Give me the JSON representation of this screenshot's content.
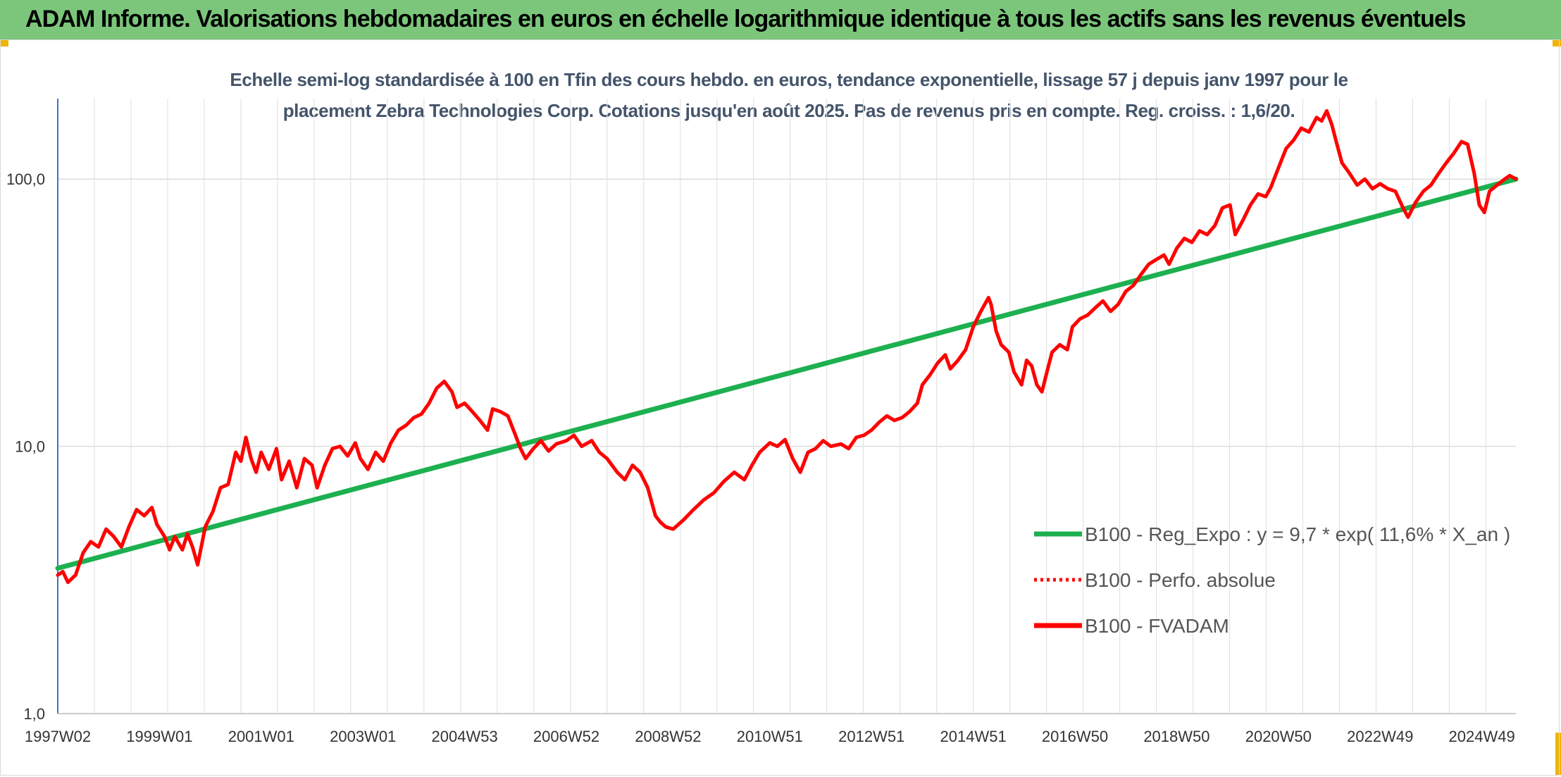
{
  "header": {
    "title": "ADAM Informe. Valorisations hebdomadaires en euros en échelle logarithmique identique à tous les actifs sans les revenus éventuels",
    "background": "#7bc67b"
  },
  "chart_data": {
    "type": "line",
    "title_line1": "Echelle semi-log standardisée à 100 en Tfin des cours hebdo. en euros, tendance exponentielle, lissage 57 j depuis janv 1997 pour le",
    "title_line2": "placement Zebra Technologies Corp. Cotations jusqu'en août 2025. Pas de revenus pris en compte. Reg. croiss. : 1,6/20.",
    "y_scale": "log",
    "ylim": [
      1,
      200
    ],
    "y_ticks": [
      {
        "value": 1,
        "label": "1,0"
      },
      {
        "value": 10,
        "label": "10,0"
      },
      {
        "value": 100,
        "label": "100,0"
      }
    ],
    "xlim": [
      1997.0,
      2025.67
    ],
    "x_ticks": [
      {
        "label": "1997W02",
        "t": 1997.0
      },
      {
        "label": "1999W01",
        "t": 1999.0
      },
      {
        "label": "2001W01",
        "t": 2001.0
      },
      {
        "label": "2003W01",
        "t": 2003.0
      },
      {
        "label": "2004W53",
        "t": 2005.0
      },
      {
        "label": "2006W52",
        "t": 2007.0
      },
      {
        "label": "2008W52",
        "t": 2009.0
      },
      {
        "label": "2010W51",
        "t": 2011.0
      },
      {
        "label": "2012W51",
        "t": 2013.0
      },
      {
        "label": "2014W51",
        "t": 2015.0
      },
      {
        "label": "2016W50",
        "t": 2017.0
      },
      {
        "label": "2018W50",
        "t": 2019.0
      },
      {
        "label": "2020W50",
        "t": 2021.0
      },
      {
        "label": "2022W49",
        "t": 2023.0
      },
      {
        "label": "2024W49",
        "t": 2025.0
      }
    ],
    "grid": true,
    "legend_position": "bottom-right",
    "series": [
      {
        "name": "B100 - Reg_Expo : y = 9,7 * exp( 11,6% *  X_an )",
        "color": "#1db050",
        "style": "solid",
        "points": [
          [
            1997.0,
            3.5
          ],
          [
            2025.67,
            100.0
          ]
        ]
      },
      {
        "name": "B100 - Perfo. absolue",
        "color": "#ff0000",
        "style": "dotted",
        "points": []
      },
      {
        "name": "B100 - FVADAM",
        "color": "#ff0000",
        "style": "solid",
        "points": [
          [
            1997.0,
            3.3
          ],
          [
            1997.1,
            3.4
          ],
          [
            1997.2,
            3.1
          ],
          [
            1997.35,
            3.3
          ],
          [
            1997.5,
            4.0
          ],
          [
            1997.65,
            4.4
          ],
          [
            1997.8,
            4.2
          ],
          [
            1997.95,
            4.9
          ],
          [
            1998.1,
            4.6
          ],
          [
            1998.25,
            4.2
          ],
          [
            1998.4,
            5.0
          ],
          [
            1998.55,
            5.8
          ],
          [
            1998.7,
            5.5
          ],
          [
            1998.85,
            5.9
          ],
          [
            1998.95,
            5.1
          ],
          [
            1999.1,
            4.6
          ],
          [
            1999.2,
            4.1
          ],
          [
            1999.3,
            4.6
          ],
          [
            1999.45,
            4.1
          ],
          [
            1999.55,
            4.7
          ],
          [
            1999.65,
            4.2
          ],
          [
            1999.75,
            3.6
          ],
          [
            1999.9,
            5.0
          ],
          [
            2000.05,
            5.7
          ],
          [
            2000.2,
            7.0
          ],
          [
            2000.35,
            7.2
          ],
          [
            2000.5,
            9.5
          ],
          [
            2000.6,
            8.8
          ],
          [
            2000.7,
            10.8
          ],
          [
            2000.8,
            9.0
          ],
          [
            2000.9,
            8.0
          ],
          [
            2001.0,
            9.5
          ],
          [
            2001.15,
            8.2
          ],
          [
            2001.3,
            9.8
          ],
          [
            2001.4,
            7.5
          ],
          [
            2001.55,
            8.8
          ],
          [
            2001.7,
            7.0
          ],
          [
            2001.85,
            9.0
          ],
          [
            2002.0,
            8.5
          ],
          [
            2002.1,
            7.0
          ],
          [
            2002.25,
            8.5
          ],
          [
            2002.4,
            9.8
          ],
          [
            2002.55,
            10.0
          ],
          [
            2002.7,
            9.2
          ],
          [
            2002.85,
            10.3
          ],
          [
            2002.95,
            9.0
          ],
          [
            2003.1,
            8.2
          ],
          [
            2003.25,
            9.5
          ],
          [
            2003.4,
            8.8
          ],
          [
            2003.55,
            10.3
          ],
          [
            2003.7,
            11.5
          ],
          [
            2003.85,
            12.0
          ],
          [
            2004.0,
            12.8
          ],
          [
            2004.15,
            13.2
          ],
          [
            2004.3,
            14.5
          ],
          [
            2004.45,
            16.5
          ],
          [
            2004.6,
            17.5
          ],
          [
            2004.75,
            16.0
          ],
          [
            2004.85,
            14.0
          ],
          [
            2005.0,
            14.5
          ],
          [
            2005.15,
            13.5
          ],
          [
            2005.3,
            12.5
          ],
          [
            2005.45,
            11.5
          ],
          [
            2005.55,
            13.8
          ],
          [
            2005.7,
            13.5
          ],
          [
            2005.85,
            13.0
          ],
          [
            2006.0,
            11.0
          ],
          [
            2006.1,
            9.8
          ],
          [
            2006.2,
            9.0
          ],
          [
            2006.35,
            9.8
          ],
          [
            2006.5,
            10.5
          ],
          [
            2006.65,
            9.6
          ],
          [
            2006.8,
            10.2
          ],
          [
            2007.0,
            10.5
          ],
          [
            2007.15,
            11.0
          ],
          [
            2007.3,
            10.0
          ],
          [
            2007.5,
            10.5
          ],
          [
            2007.65,
            9.5
          ],
          [
            2007.8,
            9.0
          ],
          [
            2008.0,
            8.0
          ],
          [
            2008.15,
            7.5
          ],
          [
            2008.3,
            8.5
          ],
          [
            2008.45,
            8.0
          ],
          [
            2008.6,
            7.0
          ],
          [
            2008.75,
            5.5
          ],
          [
            2008.85,
            5.2
          ],
          [
            2008.95,
            5.0
          ],
          [
            2009.1,
            4.9
          ],
          [
            2009.3,
            5.3
          ],
          [
            2009.5,
            5.8
          ],
          [
            2009.7,
            6.3
          ],
          [
            2009.9,
            6.7
          ],
          [
            2010.1,
            7.4
          ],
          [
            2010.3,
            8.0
          ],
          [
            2010.5,
            7.5
          ],
          [
            2010.65,
            8.5
          ],
          [
            2010.8,
            9.5
          ],
          [
            2011.0,
            10.3
          ],
          [
            2011.15,
            10.0
          ],
          [
            2011.3,
            10.6
          ],
          [
            2011.45,
            9.0
          ],
          [
            2011.6,
            8.0
          ],
          [
            2011.75,
            9.5
          ],
          [
            2011.9,
            9.8
          ],
          [
            2012.05,
            10.5
          ],
          [
            2012.2,
            10.0
          ],
          [
            2012.4,
            10.2
          ],
          [
            2012.55,
            9.8
          ],
          [
            2012.7,
            10.8
          ],
          [
            2012.85,
            11.0
          ],
          [
            2013.0,
            11.5
          ],
          [
            2013.15,
            12.3
          ],
          [
            2013.3,
            13.0
          ],
          [
            2013.45,
            12.5
          ],
          [
            2013.6,
            12.8
          ],
          [
            2013.75,
            13.5
          ],
          [
            2013.9,
            14.5
          ],
          [
            2014.0,
            17.0
          ],
          [
            2014.15,
            18.5
          ],
          [
            2014.3,
            20.5
          ],
          [
            2014.45,
            22.0
          ],
          [
            2014.55,
            19.5
          ],
          [
            2014.7,
            21.0
          ],
          [
            2014.85,
            23.0
          ],
          [
            2015.0,
            28.0
          ],
          [
            2015.15,
            32.0
          ],
          [
            2015.3,
            36.0
          ],
          [
            2015.35,
            34.0
          ],
          [
            2015.45,
            27.0
          ],
          [
            2015.55,
            24.0
          ],
          [
            2015.7,
            22.5
          ],
          [
            2015.8,
            19.0
          ],
          [
            2015.95,
            17.0
          ],
          [
            2016.05,
            21.0
          ],
          [
            2016.15,
            20.0
          ],
          [
            2016.25,
            17.0
          ],
          [
            2016.35,
            16.0
          ],
          [
            2016.45,
            19.0
          ],
          [
            2016.55,
            22.5
          ],
          [
            2016.7,
            24.0
          ],
          [
            2016.85,
            23.0
          ],
          [
            2016.95,
            28.0
          ],
          [
            2017.1,
            30.0
          ],
          [
            2017.25,
            31.0
          ],
          [
            2017.4,
            33.0
          ],
          [
            2017.55,
            35.0
          ],
          [
            2017.7,
            32.0
          ],
          [
            2017.85,
            34.0
          ],
          [
            2018.0,
            38.0
          ],
          [
            2018.15,
            40.0
          ],
          [
            2018.3,
            44.0
          ],
          [
            2018.45,
            48.0
          ],
          [
            2018.6,
            50.0
          ],
          [
            2018.75,
            52.0
          ],
          [
            2018.85,
            48.0
          ],
          [
            2019.0,
            55.0
          ],
          [
            2019.15,
            60.0
          ],
          [
            2019.3,
            58.0
          ],
          [
            2019.45,
            64.0
          ],
          [
            2019.6,
            62.0
          ],
          [
            2019.75,
            67.0
          ],
          [
            2019.9,
            78.0
          ],
          [
            2020.05,
            80.0
          ],
          [
            2020.15,
            62.0
          ],
          [
            2020.3,
            70.0
          ],
          [
            2020.45,
            80.0
          ],
          [
            2020.6,
            88.0
          ],
          [
            2020.75,
            86.0
          ],
          [
            2020.85,
            93.0
          ],
          [
            2021.0,
            110.0
          ],
          [
            2021.15,
            130.0
          ],
          [
            2021.3,
            140.0
          ],
          [
            2021.45,
            155.0
          ],
          [
            2021.6,
            150.0
          ],
          [
            2021.75,
            170.0
          ],
          [
            2021.85,
            165.0
          ],
          [
            2021.95,
            180.0
          ],
          [
            2022.05,
            160.0
          ],
          [
            2022.15,
            135.0
          ],
          [
            2022.25,
            115.0
          ],
          [
            2022.4,
            105.0
          ],
          [
            2022.55,
            95.0
          ],
          [
            2022.7,
            100.0
          ],
          [
            2022.85,
            92.0
          ],
          [
            2023.0,
            96.0
          ],
          [
            2023.15,
            92.0
          ],
          [
            2023.3,
            90.0
          ],
          [
            2023.45,
            78.0
          ],
          [
            2023.55,
            72.0
          ],
          [
            2023.7,
            82.0
          ],
          [
            2023.85,
            90.0
          ],
          [
            2024.0,
            95.0
          ],
          [
            2024.15,
            105.0
          ],
          [
            2024.3,
            115.0
          ],
          [
            2024.45,
            125.0
          ],
          [
            2024.6,
            138.0
          ],
          [
            2024.72,
            135.0
          ],
          [
            2024.85,
            105.0
          ],
          [
            2024.95,
            80.0
          ],
          [
            2025.05,
            75.0
          ],
          [
            2025.15,
            90.0
          ],
          [
            2025.3,
            95.0
          ],
          [
            2025.45,
            100.0
          ],
          [
            2025.55,
            103.0
          ],
          [
            2025.67,
            100.0
          ]
        ]
      }
    ]
  }
}
